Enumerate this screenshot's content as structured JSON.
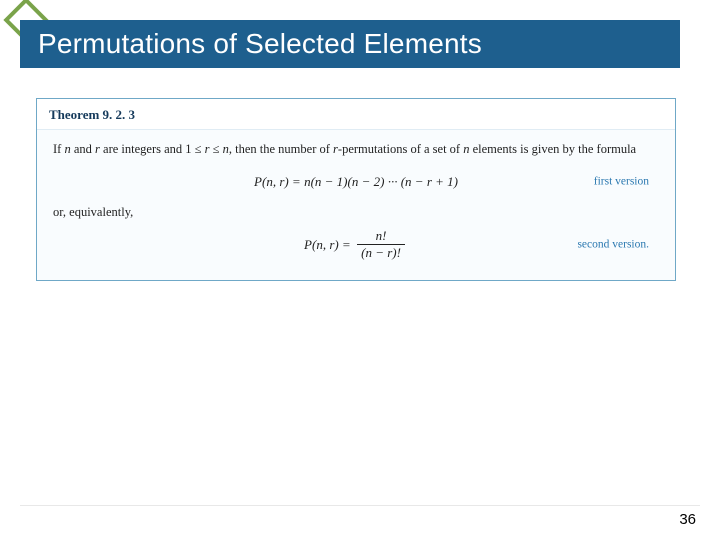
{
  "slide": {
    "title": "Permutations of Selected Elements",
    "page_number": "36",
    "accent_color": "#1e5f8e",
    "diamond_border": "#7aa34a",
    "box_border": "#6fa8c7",
    "box_bg": "#f9fcfe"
  },
  "theorem": {
    "label": "Theorem 9. 2. 3",
    "intro_html": "If n and r are integers and 1 ≤ r ≤ n, then the number of r-permutations of a set of n elements is given by the formula",
    "formula1_lhs": "P(n, r) = ",
    "formula1_rhs": "n(n − 1)(n − 2) ··· (n − r + 1)",
    "version1": "first version",
    "or_text": "or, equivalently,",
    "formula2_lhs": "P(n, r) = ",
    "frac_num": "n!",
    "frac_den": "(n − r)!",
    "version2": "second version."
  }
}
